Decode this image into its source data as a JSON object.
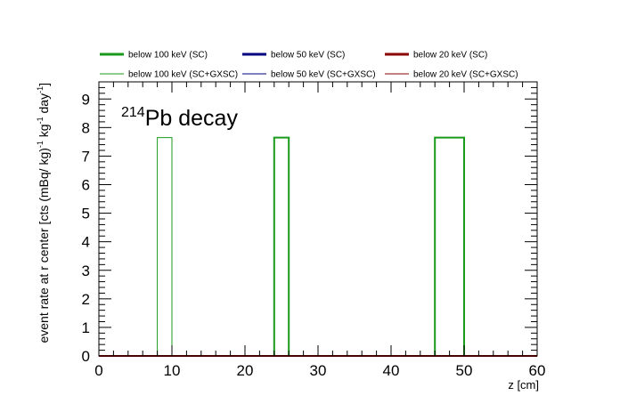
{
  "chart_data": {
    "type": "line",
    "style": "step-histogram",
    "title": {
      "superscript": "214",
      "text": "Pb decay"
    },
    "xlabel": "z [cm]",
    "ylabel": {
      "main": "event rate at r center [cts (mBq/ kg)",
      "sup1": "-1",
      "mid": " kg",
      "sup2": "-1",
      "post": " day",
      "sup3": "-1",
      "close": "]"
    },
    "xlim": [
      0,
      60
    ],
    "ylim": [
      0,
      9.6
    ],
    "xticks": [
      "0",
      "10",
      "20",
      "30",
      "40",
      "50",
      "60"
    ],
    "yticks": [
      "0",
      "1",
      "2",
      "3",
      "4",
      "5",
      "6",
      "7",
      "8",
      "9"
    ],
    "grid": false,
    "legend_position": "top",
    "series": [
      {
        "name": "below 100 keV (SC)",
        "color": "#1a9a1a",
        "style": "thick",
        "bins": [
          {
            "x0": 24,
            "x1": 26,
            "y": 7.65
          },
          {
            "x0": 46,
            "x1": 50,
            "y": 7.65
          }
        ]
      },
      {
        "name": "below 50 keV (SC)",
        "color": "#00007f",
        "style": "thick",
        "bins": []
      },
      {
        "name": "below 20 keV (SC)",
        "color": "#8b0000",
        "style": "thick",
        "bins": []
      },
      {
        "name": "below 100 keV (SC+GXSC)",
        "color": "#1a9a1a",
        "style": "thin",
        "bins": [
          {
            "x0": 8,
            "x1": 10,
            "y": 7.65
          }
        ]
      },
      {
        "name": "below 50 keV (SC+GXSC)",
        "color": "#00007f",
        "style": "thin",
        "bins": []
      },
      {
        "name": "below 20 keV (SC+GXSC)",
        "color": "#8b0000",
        "style": "thin",
        "bins": []
      }
    ]
  }
}
